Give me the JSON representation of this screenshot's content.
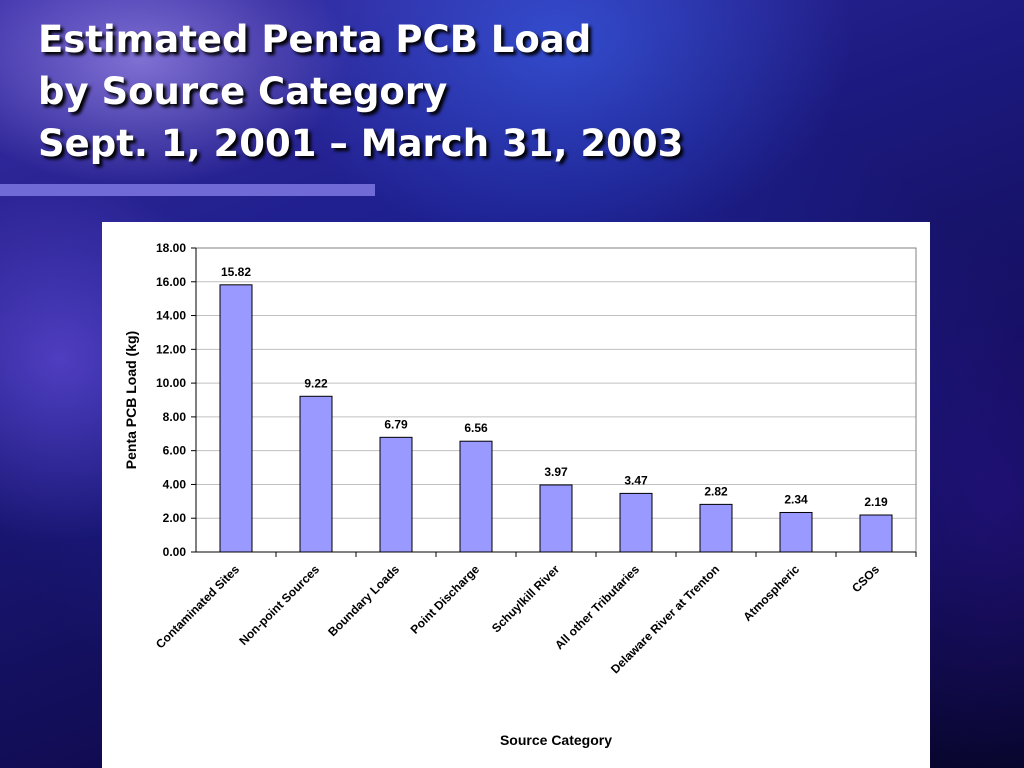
{
  "slide": {
    "title_lines": [
      "Estimated Penta PCB Load",
      "by Source Category",
      "Sept. 1, 2001 – March 31, 2003"
    ],
    "background_color": "#1c1a80",
    "rule_color": "#6f6ad6"
  },
  "chart_data": {
    "type": "bar",
    "title": "",
    "xlabel": "Source Category",
    "ylabel": "Penta PCB Load (kg)",
    "categories": [
      "Contaminated Sites",
      "Non-point Sources",
      "Boundary Loads",
      "Point Discharge",
      "Schuylkill River",
      "All other Tributaries",
      "Delaware River at Trenton",
      "Atmospheric",
      "CSOs"
    ],
    "values": [
      15.82,
      9.22,
      6.79,
      6.56,
      3.97,
      3.47,
      2.82,
      2.34,
      2.19
    ],
    "value_labels": [
      "15.82",
      "9.22",
      "6.79",
      "6.56",
      "3.97",
      "3.47",
      "2.82",
      "2.34",
      "2.19"
    ],
    "ylim": [
      0,
      18
    ],
    "y_ticks": [
      "0.00",
      "2.00",
      "4.00",
      "6.00",
      "8.00",
      "10.00",
      "12.00",
      "14.00",
      "16.00",
      "18.00"
    ],
    "grid": true,
    "legend": "none",
    "bar_color": "#9999ff",
    "bar_edge_color": "#000000",
    "gridline_color": "#c0c0c0"
  }
}
